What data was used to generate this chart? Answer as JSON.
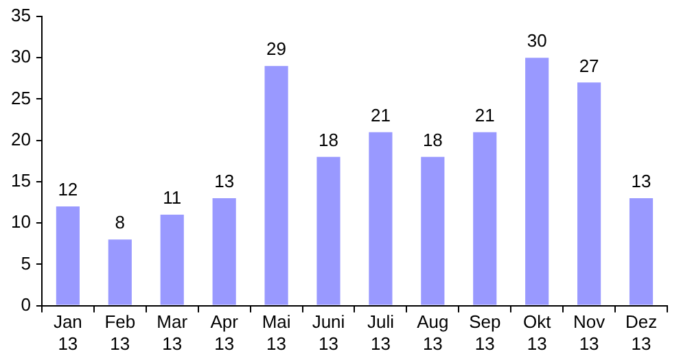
{
  "chart_data": {
    "type": "bar",
    "categories": [
      "Jan 13",
      "Feb 13",
      "Mar 13",
      "Apr 13",
      "Mai 13",
      "Juni 13",
      "Juli 13",
      "Aug 13",
      "Sep 13",
      "Okt 13",
      "Nov 13",
      "Dez 13"
    ],
    "values": [
      12,
      8,
      11,
      13,
      29,
      18,
      21,
      18,
      21,
      30,
      27,
      13
    ],
    "color": "#9999ff",
    "ylim": [
      0,
      35
    ],
    "yticks": [
      0,
      5,
      10,
      15,
      20,
      25,
      30,
      35
    ],
    "grid": false,
    "legend": false,
    "data_labels": true
  }
}
